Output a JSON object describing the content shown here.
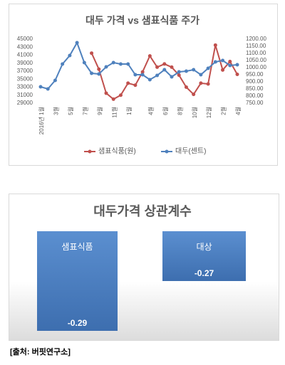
{
  "chart_data": [
    {
      "type": "line",
      "title": "대두 가격 vs 샘표식품 주가",
      "categories": [
        "2016년 1월",
        null,
        "3월",
        null,
        "5월",
        null,
        "7월",
        null,
        "9월",
        null,
        "11월",
        null,
        "1월",
        null,
        null,
        "4월",
        null,
        "6월",
        null,
        "8월",
        null,
        "10월",
        null,
        "12월",
        null,
        "2월",
        null,
        "4월"
      ],
      "series": [
        {
          "name": "샘표식품(원)",
          "color": "#c0504d",
          "values": [
            null,
            null,
            null,
            null,
            null,
            null,
            null,
            41500,
            37500,
            31500,
            30000,
            31000,
            34000,
            33500,
            36800,
            40800,
            38000,
            38800,
            38000,
            36000,
            33000,
            31200,
            34000,
            33800,
            43500,
            37300,
            39400,
            36200
          ]
        },
        {
          "name": "대두(센트)",
          "color": "#4f81bd",
          "axis": "y2",
          "values": [
            865,
            850,
            910,
            1025,
            1085,
            1175,
            1035,
            960,
            955,
            1005,
            1035,
            1025,
            1025,
            950,
            950,
            915,
            945,
            985,
            935,
            970,
            975,
            985,
            950,
            995,
            1040,
            1050,
            1015,
            1020
          ]
        }
      ],
      "ylim": [
        29000,
        45000
      ],
      "yticks": [
        29000,
        31000,
        33000,
        35000,
        37000,
        39000,
        41000,
        43000,
        45000
      ],
      "y2lim": [
        750,
        1200
      ],
      "y2ticks": [
        {
          "value": 750,
          "label": "750.00"
        },
        {
          "value": 800,
          "label": "800.00"
        },
        {
          "value": 850,
          "label": "850.00"
        },
        {
          "value": 900,
          "label": "900.00"
        },
        {
          "value": 950,
          "label": "950.00"
        },
        {
          "value": 1000,
          "label": "1000.00"
        },
        {
          "value": 1050,
          "label": "1050.00"
        },
        {
          "value": 1100,
          "label": "1100.00"
        },
        {
          "value": 1150,
          "label": "1150.00"
        },
        {
          "value": 1200,
          "label": "1200.00"
        }
      ],
      "legend": "bottom"
    },
    {
      "type": "bar",
      "title": "대두가격 상관계수",
      "categories": [
        "샘표식품",
        "대상"
      ],
      "values": [
        -0.29,
        -0.27
      ],
      "value_labels": [
        "-0.29",
        "-0.27"
      ],
      "color": "#4f81bd",
      "ylim": [
        -0.29,
        -0.25
      ]
    }
  ],
  "source": "[출처: 버핏연구소]"
}
